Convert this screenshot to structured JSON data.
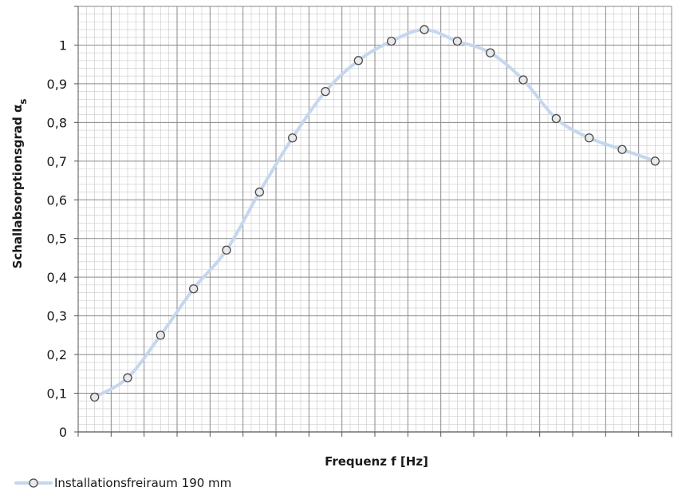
{
  "chart_data": {
    "type": "line",
    "title": "",
    "xlabel": "Frequenz f [Hz]",
    "ylabel": "Schallabsorptionsgrad α",
    "ylabel_subscript": "s",
    "ylim": [
      0,
      1.1
    ],
    "yticks": [
      "0",
      "0,1",
      "0,2",
      "0,3",
      "0,4",
      "0,5",
      "0,6",
      "0,7",
      "0,8",
      "0,9",
      "1"
    ],
    "x": [
      1,
      2,
      3,
      4,
      5,
      6,
      7,
      8,
      9,
      10,
      11,
      12,
      13,
      14,
      15,
      16,
      17,
      18
    ],
    "grid": true,
    "legend": "bottom-left",
    "series": [
      {
        "name": "Installationsfreiraum 190 mm",
        "color": "#c5d7ee",
        "marker": "circle",
        "values": [
          0.09,
          0.14,
          0.25,
          0.37,
          0.47,
          0.62,
          0.76,
          0.88,
          0.96,
          1.01,
          1.04,
          1.01,
          0.98,
          0.91,
          0.81,
          0.76,
          0.73,
          0.7
        ]
      }
    ]
  }
}
